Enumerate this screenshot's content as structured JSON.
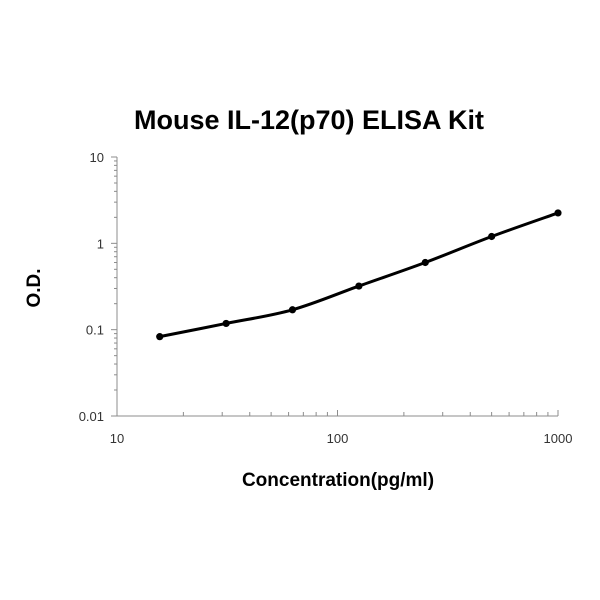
{
  "chart_data": {
    "type": "scatter",
    "title": "Mouse IL-12(p70) ELISA Kit",
    "xlabel": "Concentration(pg/ml)",
    "ylabel": "O.D.",
    "xscale": "log",
    "yscale": "log",
    "xlim": [
      10,
      1000
    ],
    "ylim": [
      0.01,
      10
    ],
    "xticks": [
      "10",
      "100",
      "1000"
    ],
    "yticks": [
      "0.01",
      "0.1",
      "1",
      "10"
    ],
    "grid": false,
    "legend": "none",
    "fit_line": true,
    "series": [
      {
        "x": [
          15.625,
          31.25,
          62.5,
          125,
          250,
          500,
          1000
        ],
        "y": [
          0.083,
          0.118,
          0.17,
          0.32,
          0.6,
          1.2,
          2.25
        ]
      }
    ],
    "colors": {
      "points": "#000000",
      "line": "#000000",
      "axis": "#8c8c8c"
    }
  }
}
